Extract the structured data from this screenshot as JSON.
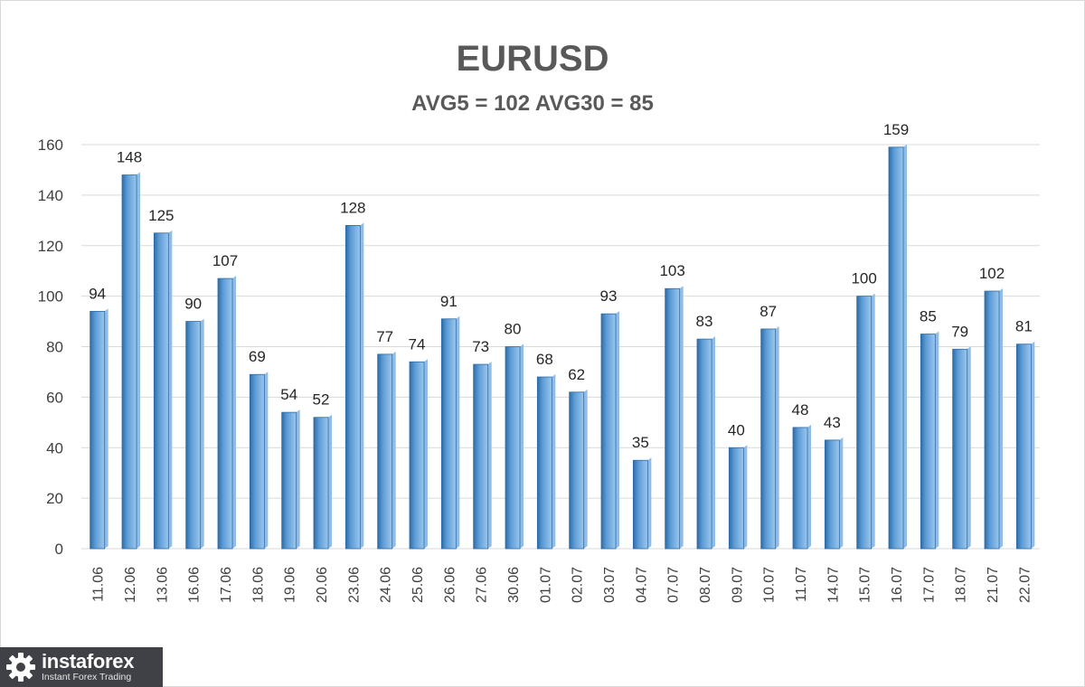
{
  "chart_data": {
    "type": "bar",
    "title": "EURUSD",
    "subtitle": "AVG5 = 102 AVG30 = 85",
    "categories": [
      "11.06",
      "12.06",
      "13.06",
      "16.06",
      "17.06",
      "18.06",
      "19.06",
      "20.06",
      "23.06",
      "24.06",
      "25.06",
      "26.06",
      "27.06",
      "30.06",
      "01.07",
      "02.07",
      "03.07",
      "04.07",
      "07.07",
      "08.07",
      "09.07",
      "10.07",
      "11.07",
      "14.07",
      "15.07",
      "16.07",
      "17.07",
      "18.07",
      "21.07",
      "22.07"
    ],
    "values": [
      94,
      148,
      125,
      90,
      107,
      69,
      54,
      52,
      128,
      77,
      74,
      91,
      73,
      80,
      68,
      62,
      93,
      35,
      103,
      83,
      40,
      87,
      48,
      43,
      100,
      159,
      85,
      79,
      102,
      81
    ],
    "ylim": [
      0,
      160
    ],
    "yticks": [
      0,
      20,
      40,
      60,
      80,
      100,
      120,
      140,
      160
    ],
    "grid": true,
    "legend": "none",
    "data_labels": true,
    "colors": {
      "bar": "#5b9bd5",
      "bar_dark": "#2e6ca8",
      "bar_light": "#9cc7ee",
      "grid": "#d9d9d9"
    }
  },
  "logo": {
    "name": "instaforex",
    "tagline": "Instant Forex Trading",
    "icon": "gear-icon"
  }
}
